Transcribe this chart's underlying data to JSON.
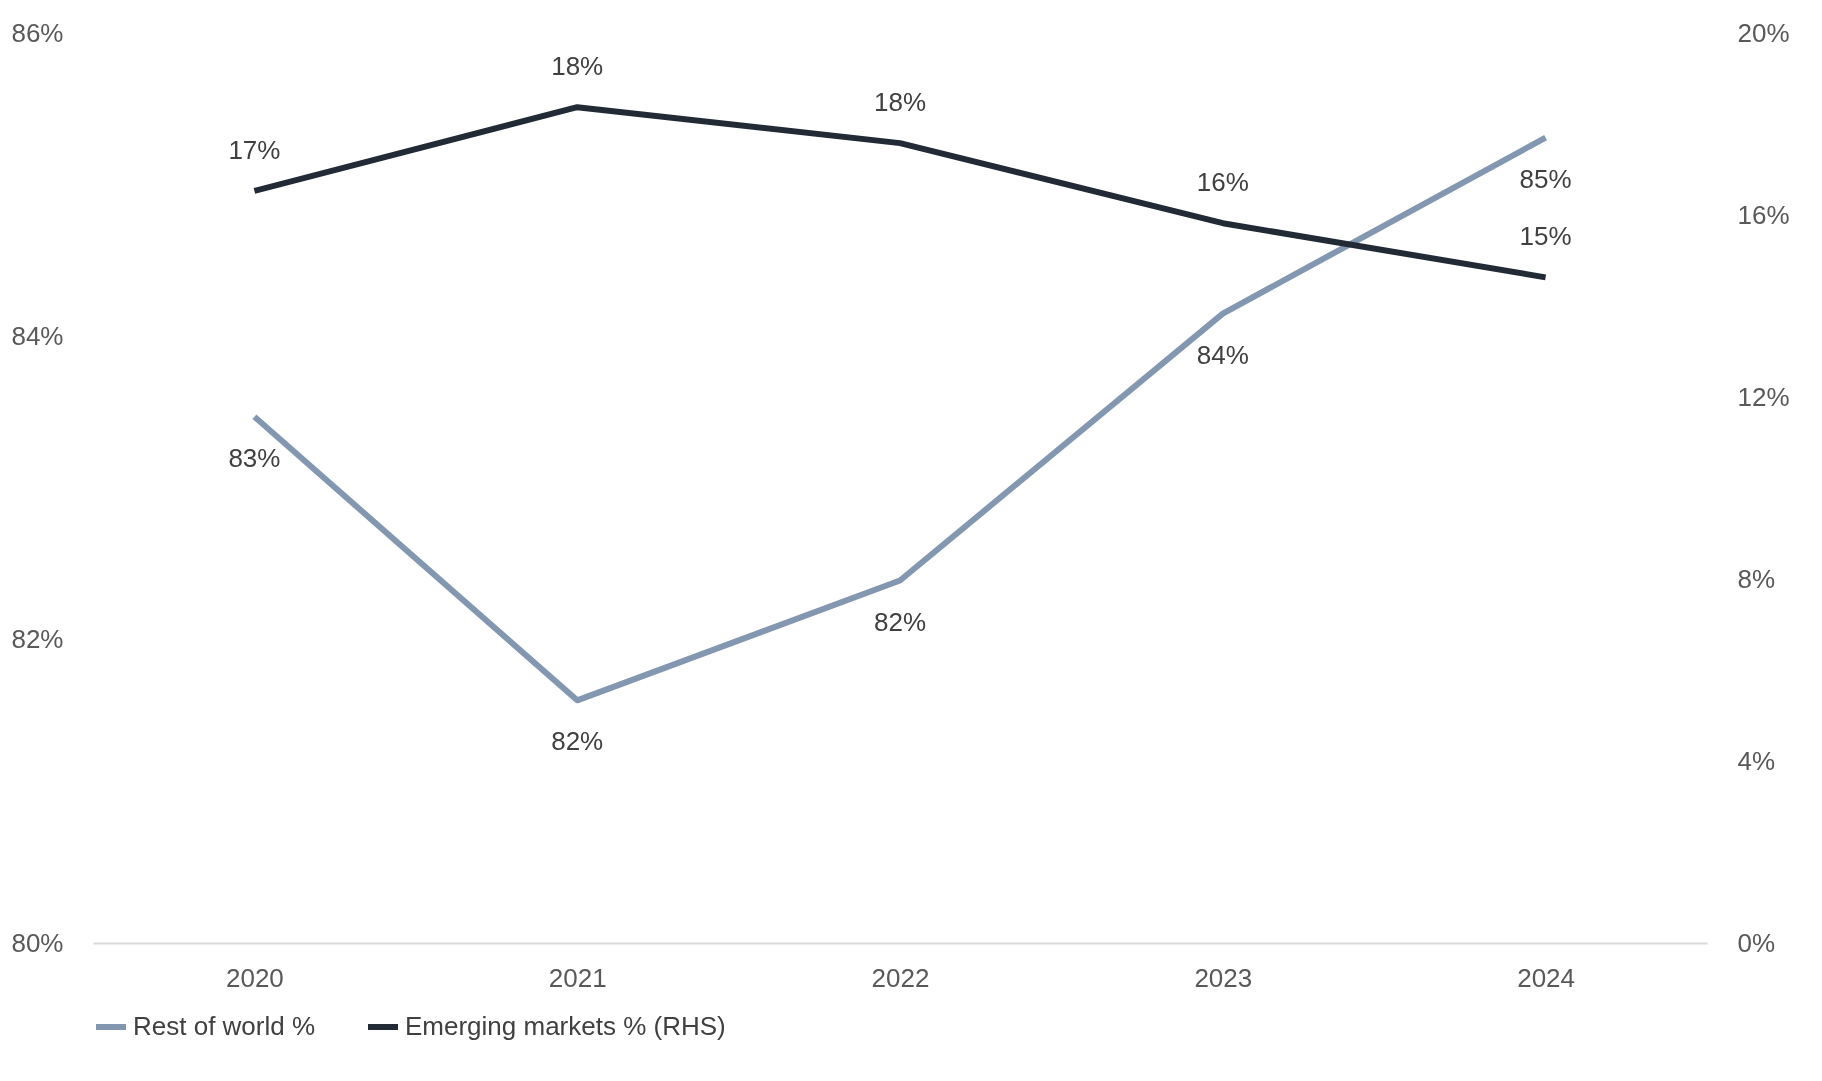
{
  "chart_data": {
    "type": "line",
    "categories": [
      "2020",
      "2021",
      "2022",
      "2023",
      "2024"
    ],
    "series": [
      {
        "name": "Rest of world %",
        "color": "#8497b0",
        "values": [
          83.47,
          81.6,
          82.39,
          84.15,
          85.31
        ],
        "value_labels": [
          "83%",
          "82%",
          "82%",
          "84%",
          "85%"
        ]
      },
      {
        "name": "Emerging markets % (RHS)",
        "color": "#222a35",
        "axis": "y2",
        "values": [
          16.53,
          18.37,
          17.58,
          15.82,
          14.63
        ],
        "value_labels": [
          "17%",
          "18%",
          "18%",
          "16%",
          "15%"
        ]
      }
    ],
    "ylim": [
      80,
      86
    ],
    "yticks": [
      {
        "value": 80,
        "label": "80%"
      },
      {
        "value": 82,
        "label": "82%"
      },
      {
        "value": 84,
        "label": "84%"
      },
      {
        "value": 86,
        "label": "86%"
      }
    ],
    "y2lim": [
      0,
      20
    ],
    "y2ticks": [
      {
        "value": 0,
        "label": "0%"
      },
      {
        "value": 4,
        "label": "4%"
      },
      {
        "value": 8,
        "label": "8%"
      },
      {
        "value": 12,
        "label": "12%"
      },
      {
        "value": 16,
        "label": "16%"
      },
      {
        "value": 20,
        "label": "20%"
      }
    ],
    "grid": false,
    "legend": "bottom",
    "marker": "none",
    "line_style": "solid"
  }
}
